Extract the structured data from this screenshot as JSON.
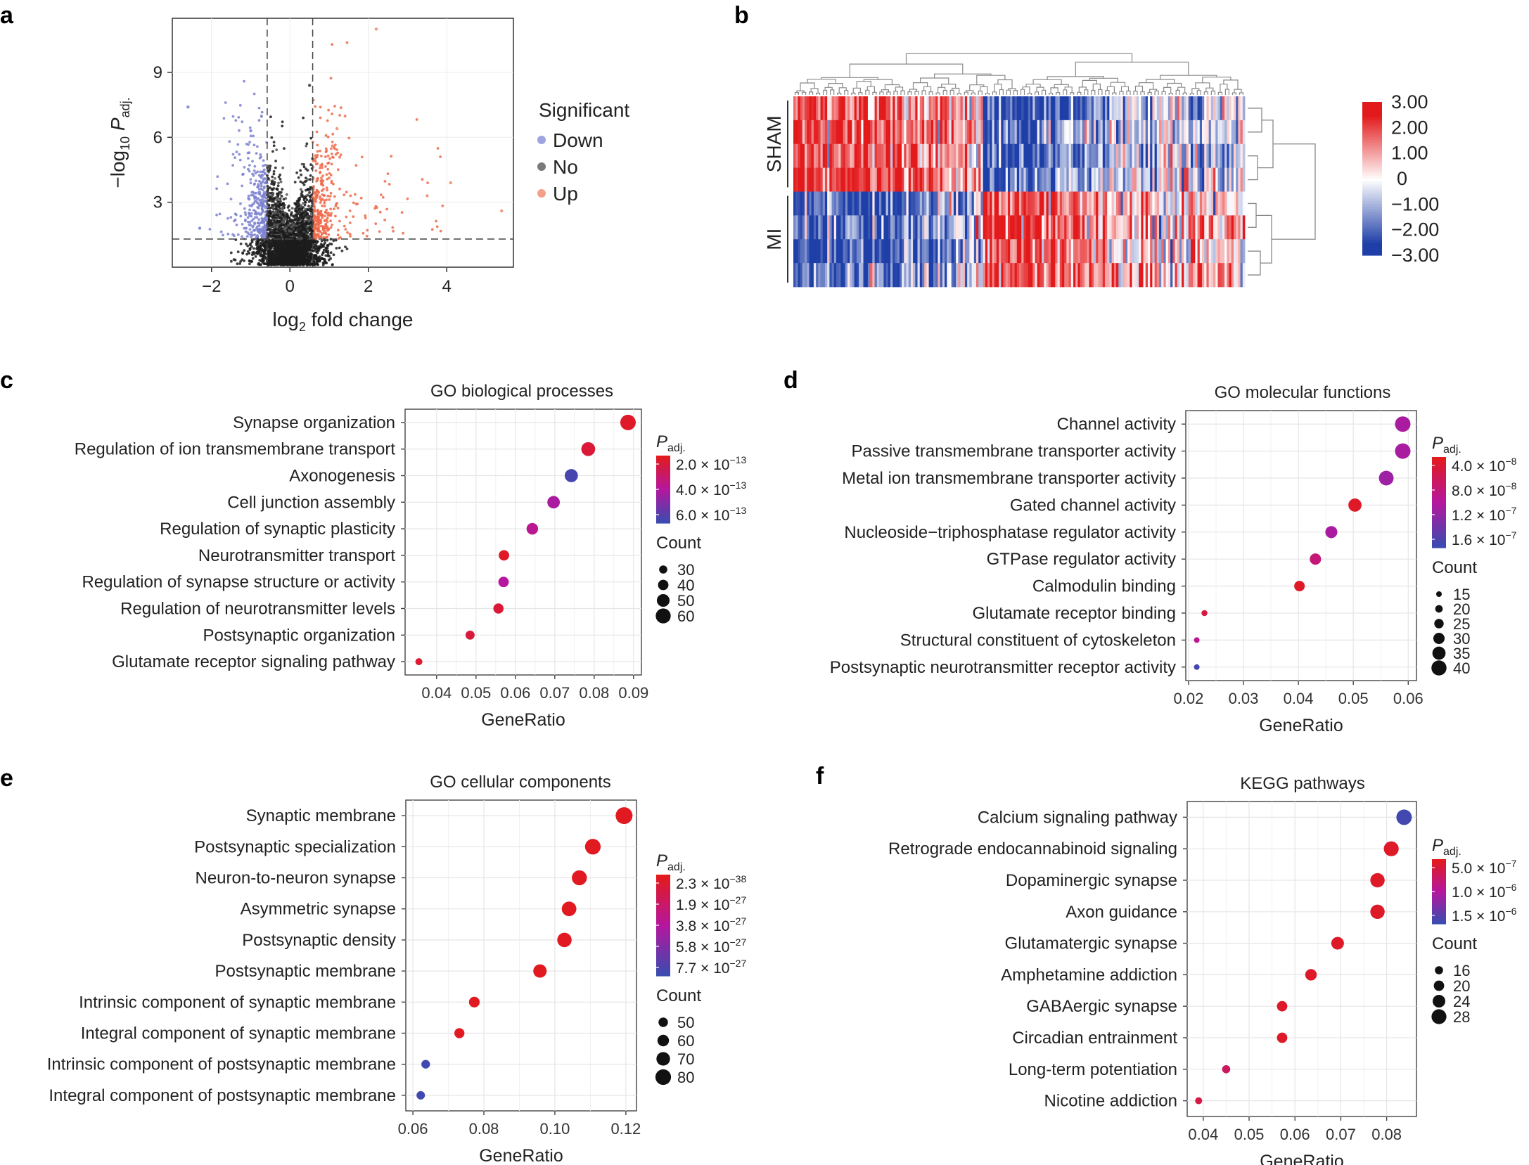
{
  "panel_labels": {
    "a": "a",
    "b": "b",
    "c": "c",
    "d": "d",
    "e": "e",
    "f": "f"
  },
  "legend_common": {
    "padj_symbol": "P",
    "padj_sub": "adj.",
    "count_title": "Count",
    "xlabel": "GeneRatio"
  },
  "colors": {
    "red": "#e31a1c",
    "blue": "#3b4bb0",
    "mid": "#b5179e",
    "up": "#f08060",
    "down": "#8a8ed8",
    "no": "#222222"
  },
  "chart_data": [
    {
      "id": "volcano",
      "type": "scatter",
      "title": "",
      "xlabel_main": "log",
      "xlabel_sub": "2",
      "xlabel_rest": " fold change",
      "ylabel_pre": "−log",
      "ylabel_sub": "10",
      "ylabel_P": " P",
      "ylabel_adj": "adj.",
      "xlim": [
        -3.0,
        5.7
      ],
      "ylim": [
        0,
        11.5
      ],
      "xticks": [
        -2,
        0,
        2,
        4
      ],
      "xtick_labels": [
        "−2",
        "0",
        "2",
        "4"
      ],
      "yticks": [
        3,
        6,
        9
      ],
      "ytick_labels": [
        "3",
        "6",
        "9"
      ],
      "thresholds": {
        "fc": [
          -0.58,
          0.58
        ],
        "p": 1.3
      },
      "legend_title": "Significant",
      "legend": [
        {
          "label": "Down",
          "color": "#9fa3de"
        },
        {
          "label": "No",
          "color": "#7a7a7a"
        },
        {
          "label": "Up",
          "color": "#f4a088"
        }
      ],
      "sample_points": [
        {
          "x": 2.2,
          "y": 11.0
        },
        {
          "x": -2.6,
          "y": 7.4
        },
        {
          "x": 5.4,
          "y": 2.6
        },
        {
          "x": 4.1,
          "y": 3.9
        },
        {
          "x": 3.5,
          "y": 3.3
        },
        {
          "x": -2.3,
          "y": 1.8
        },
        {
          "x": 1.2,
          "y": 6.4
        },
        {
          "x": -1.0,
          "y": 6.3
        },
        {
          "x": 0.5,
          "y": 8.4
        }
      ]
    },
    {
      "id": "heatmap",
      "type": "heatmap",
      "row_groups": [
        "SHAM",
        "MI"
      ],
      "n_rows": 8,
      "n_cols": 200,
      "scale_ticks": [
        "3.00",
        "2.00",
        "1.00",
        "0",
        "−1.00",
        "−2.00",
        "−3.00"
      ],
      "scale_values": [
        3,
        2,
        1,
        0,
        -1,
        -2,
        -3
      ]
    },
    {
      "id": "go_bp",
      "type": "scatter",
      "title": "GO biological processes",
      "categories": [
        "Synapse organization",
        "Regulation of ion transmembrane transport",
        "Axonogenesis",
        "Cell junction assembly",
        "Regulation of synaptic plasticity",
        "Neurotransmitter transport",
        "Regulation of synapse structure or activity",
        "Regulation of neurotransmitter levels",
        "Postsynaptic organization",
        "Glutamate receptor signaling pathway"
      ],
      "gene_ratio": [
        0.0886,
        0.0785,
        0.0742,
        0.0697,
        0.0643,
        0.0571,
        0.057,
        0.0557,
        0.0485,
        0.0355
      ],
      "count": [
        62,
        55,
        52,
        49,
        45,
        40,
        40,
        39,
        34,
        25
      ],
      "padj_rank": [
        0.05,
        0.1,
        0.95,
        0.55,
        0.45,
        0.05,
        0.5,
        0.1,
        0.12,
        0.08
      ],
      "xlim": [
        0.032,
        0.092
      ],
      "xticks": [
        0.04,
        0.05,
        0.06,
        0.07,
        0.08,
        0.09
      ],
      "xtick_labels": [
        "0.04",
        "0.05",
        "0.06",
        "0.07",
        "0.08",
        "0.09"
      ],
      "padj_ticks": [
        {
          "mant": "2.0",
          "exp": "−13"
        },
        {
          "mant": "4.0",
          "exp": "−13"
        },
        {
          "mant": "6.0",
          "exp": "−13"
        }
      ],
      "count_legend": [
        "30",
        "40",
        "50",
        "60"
      ]
    },
    {
      "id": "go_mf",
      "type": "scatter",
      "title": "GO molecular functions",
      "categories": [
        "Channel activity",
        "Passive transmembrane transporter activity",
        "Metal ion transmembrane transporter activity",
        "Gated channel activity",
        "Nucleoside−triphosphatase regulator activity",
        "GTPase regulator activity",
        "Calmodulin binding",
        "Glutamate receptor binding",
        "Structural constituent of cytoskeleton",
        "Postsynaptic neurotransmitter receptor activity"
      ],
      "gene_ratio": [
        0.059,
        0.059,
        0.056,
        0.0503,
        0.046,
        0.0431,
        0.0402,
        0.0229,
        0.0215,
        0.0215
      ],
      "count": [
        41,
        41,
        39,
        35,
        32,
        30,
        28,
        16,
        15,
        15
      ],
      "padj_rank": [
        0.55,
        0.55,
        0.6,
        0.05,
        0.55,
        0.35,
        0.05,
        0.15,
        0.45,
        0.95
      ],
      "xlim": [
        0.0195,
        0.0615
      ],
      "xticks": [
        0.02,
        0.03,
        0.04,
        0.05,
        0.06
      ],
      "xtick_labels": [
        "0.02",
        "0.03",
        "0.04",
        "0.05",
        "0.06"
      ],
      "padj_ticks": [
        {
          "mant": "4.0",
          "exp": "−8"
        },
        {
          "mant": "8.0",
          "exp": "−8"
        },
        {
          "mant": "1.2",
          "exp": "−7"
        },
        {
          "mant": "1.6",
          "exp": "−7"
        }
      ],
      "count_legend": [
        "15",
        "20",
        "25",
        "30",
        "35",
        "40"
      ]
    },
    {
      "id": "go_cc",
      "type": "scatter",
      "title": "GO cellular components",
      "categories": [
        "Synaptic membrane",
        "Postsynaptic specialization",
        "Neuron-to-neuron synapse",
        "Asymmetric synapse",
        "Postsynaptic density",
        "Postsynaptic membrane",
        "Intrinsic component of synaptic membrane",
        "Integral component of synaptic membrane",
        "Intrinsic component of postsynaptic membrane",
        "Integral component of postsynaptic membrane"
      ],
      "gene_ratio": [
        0.1195,
        0.1107,
        0.1069,
        0.104,
        0.1027,
        0.0958,
        0.0773,
        0.0731,
        0.0636,
        0.0622
      ],
      "count": [
        86,
        80,
        77,
        75,
        74,
        69,
        56,
        53,
        46,
        45
      ],
      "padj_rank": [
        0.02,
        0.02,
        0.02,
        0.02,
        0.02,
        0.02,
        0.02,
        0.02,
        0.98,
        0.98
      ],
      "xlim": [
        0.058,
        0.123
      ],
      "xticks": [
        0.06,
        0.08,
        0.1,
        0.12
      ],
      "xtick_labels": [
        "0.06",
        "0.08",
        "0.10",
        "0.12"
      ],
      "padj_ticks": [
        {
          "mant": "2.3",
          "exp": "−38"
        },
        {
          "mant": "1.9",
          "exp": "−27"
        },
        {
          "mant": "3.8",
          "exp": "−27"
        },
        {
          "mant": "5.8",
          "exp": "−27"
        },
        {
          "mant": "7.7",
          "exp": "−27"
        }
      ],
      "count_legend": [
        "50",
        "60",
        "70",
        "80"
      ]
    },
    {
      "id": "kegg",
      "type": "scatter",
      "title": "KEGG pathways",
      "categories": [
        "Calcium signaling pathway",
        "Retrograde endocannabinoid signaling",
        "Dopaminergic synapse",
        "Axon guidance",
        "Glutamatergic synapse",
        "Amphetamine addiction",
        "GABAergic synapse",
        "Circadian entrainment",
        "Long-term potentiation",
        "Nicotine addiction"
      ],
      "gene_ratio": [
        0.0838,
        0.081,
        0.078,
        0.078,
        0.0693,
        0.0635,
        0.0572,
        0.0572,
        0.045,
        0.039
      ],
      "count": [
        29,
        28,
        27,
        27,
        24,
        22,
        20,
        20,
        16,
        14
      ],
      "padj_rank": [
        0.97,
        0.05,
        0.05,
        0.05,
        0.05,
        0.05,
        0.05,
        0.05,
        0.25,
        0.15
      ],
      "xlim": [
        0.0365,
        0.0865
      ],
      "xticks": [
        0.04,
        0.05,
        0.06,
        0.07,
        0.08
      ],
      "xtick_labels": [
        "0.04",
        "0.05",
        "0.06",
        "0.07",
        "0.08"
      ],
      "padj_ticks": [
        {
          "mant": "5.0",
          "exp": "−7"
        },
        {
          "mant": "1.0",
          "exp": "−6"
        },
        {
          "mant": "1.5",
          "exp": "−6"
        }
      ],
      "count_legend": [
        "16",
        "20",
        "24",
        "28"
      ]
    }
  ]
}
